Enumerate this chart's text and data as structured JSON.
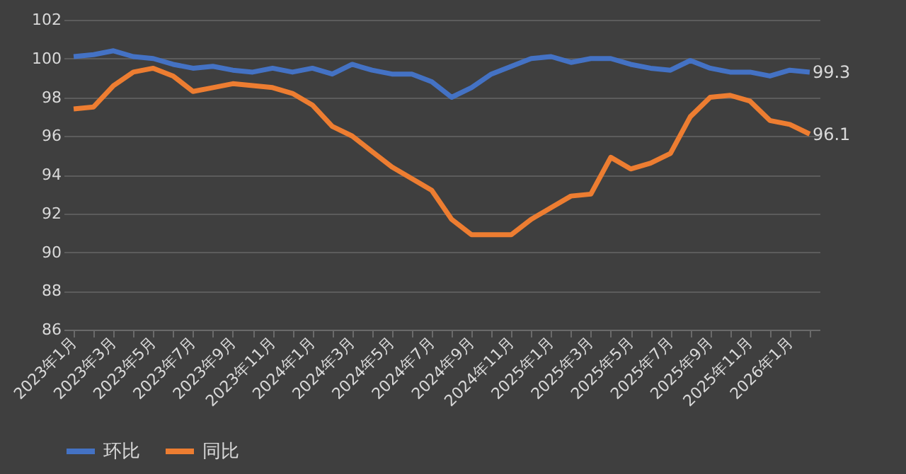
{
  "chart_data": {
    "type": "line",
    "categories": [
      "2023年1月",
      null,
      "2023年3月",
      null,
      "2023年5月",
      null,
      "2023年7月",
      null,
      "2023年9月",
      null,
      "2023年11月",
      null,
      "2024年1月",
      null,
      "2024年3月",
      null,
      "2024年5月",
      null,
      "2024年7月",
      null,
      "2024年9月",
      null,
      "2024年11月",
      null,
      "2025年1月",
      null,
      "2025年3月",
      null,
      "2025年5月",
      null,
      "2025年7月",
      null,
      "2025年9月",
      null,
      "2025年11月",
      null,
      "2026年1月",
      null
    ],
    "series": [
      {
        "name": "环比",
        "color": "#4472c4",
        "values": [
          100.1,
          100.2,
          100.4,
          100.1,
          100.0,
          99.7,
          99.5,
          99.6,
          99.4,
          99.3,
          99.5,
          99.3,
          99.5,
          99.2,
          99.7,
          99.4,
          99.2,
          99.2,
          98.8,
          98.0,
          98.5,
          99.2,
          99.6,
          100.0,
          100.1,
          99.8,
          100.0,
          100.0,
          99.7,
          99.5,
          99.4,
          99.9,
          99.5,
          99.3,
          99.3,
          99.1,
          99.4,
          99.3
        ],
        "value_labels": [
          null,
          null,
          null,
          null,
          null,
          null,
          null,
          null,
          null,
          null,
          null,
          null,
          null,
          null,
          null,
          null,
          null,
          null,
          null,
          null,
          null,
          null,
          null,
          null,
          null,
          null,
          null,
          null,
          null,
          null,
          null,
          null,
          null,
          null,
          null,
          null,
          null,
          "99.3"
        ]
      },
      {
        "name": "同比",
        "color": "#ed7d31",
        "values": [
          97.4,
          97.5,
          98.6,
          99.3,
          99.5,
          99.1,
          98.3,
          98.5,
          98.7,
          98.6,
          98.5,
          98.2,
          97.6,
          96.5,
          96.0,
          95.2,
          94.4,
          93.8,
          93.2,
          91.7,
          90.9,
          90.9,
          90.9,
          91.7,
          92.3,
          92.9,
          93.0,
          94.9,
          94.3,
          94.6,
          95.1,
          97.0,
          98.0,
          98.1,
          97.8,
          96.8,
          96.6,
          96.1
        ],
        "value_labels": [
          null,
          null,
          null,
          null,
          null,
          null,
          null,
          null,
          null,
          null,
          null,
          null,
          null,
          null,
          null,
          null,
          null,
          null,
          null,
          null,
          null,
          null,
          null,
          null,
          null,
          null,
          null,
          null,
          null,
          null,
          null,
          null,
          null,
          null,
          null,
          null,
          null,
          "96.1"
        ]
      }
    ],
    "ylim": [
      86,
      102
    ],
    "yticks": [
      86,
      88,
      90,
      92,
      94,
      96,
      98,
      100,
      102
    ],
    "grid": "y",
    "legend": "bottom",
    "marker": "none",
    "line_style": "solid"
  }
}
